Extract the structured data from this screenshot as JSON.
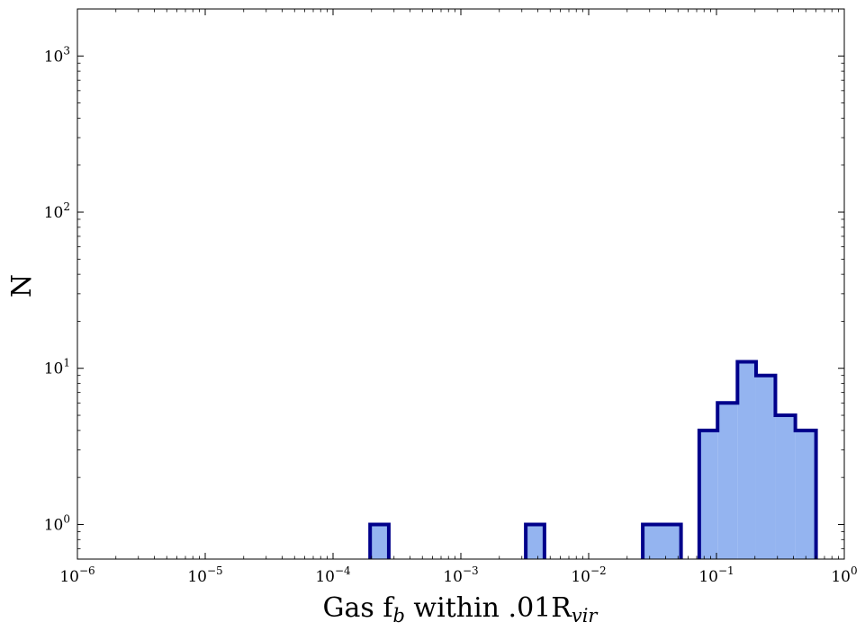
{
  "chart_data": {
    "type": "bar",
    "subtype": "histogram-step",
    "xscale": "log",
    "yscale": "log",
    "xlim": [
      1e-06,
      1
    ],
    "ylim": [
      0.6,
      2000
    ],
    "grid": false,
    "fill_color": "#94b4f0",
    "edge_color": "#00008b",
    "xlabel": {
      "main": "Gas f",
      "sub1": "b",
      "mid": " within .01R",
      "sub2": "vir"
    },
    "ylabel": "N",
    "x_ticks": [
      {
        "base": "10",
        "exp": "−6",
        "value": 1e-06
      },
      {
        "base": "10",
        "exp": "−5",
        "value": 1e-05
      },
      {
        "base": "10",
        "exp": "−4",
        "value": 0.0001
      },
      {
        "base": "10",
        "exp": "−3",
        "value": 0.001
      },
      {
        "base": "10",
        "exp": "−2",
        "value": 0.01
      },
      {
        "base": "10",
        "exp": "−1",
        "value": 0.1
      },
      {
        "base": "10",
        "exp": "0",
        "value": 1
      }
    ],
    "y_ticks": [
      {
        "base": "10",
        "exp": "0",
        "value": 1
      },
      {
        "base": "10",
        "exp": "1",
        "value": 10
      },
      {
        "base": "10",
        "exp": "2",
        "value": 100
      },
      {
        "base": "10",
        "exp": "3",
        "value": 1000
      }
    ],
    "bins": [
      {
        "x0": 0.000195,
        "x1": 0.000273,
        "count": 1
      },
      {
        "x0": 0.00322,
        "x1": 0.00451,
        "count": 1
      },
      {
        "x0": 0.0265,
        "x1": 0.0528,
        "count": 1
      },
      {
        "x0": 0.0733,
        "x1": 0.102,
        "count": 4
      },
      {
        "x0": 0.102,
        "x1": 0.146,
        "count": 6
      },
      {
        "x0": 0.146,
        "x1": 0.204,
        "count": 11
      },
      {
        "x0": 0.204,
        "x1": 0.289,
        "count": 9
      },
      {
        "x0": 0.289,
        "x1": 0.414,
        "count": 5
      },
      {
        "x0": 0.414,
        "x1": 0.601,
        "count": 4
      }
    ]
  }
}
